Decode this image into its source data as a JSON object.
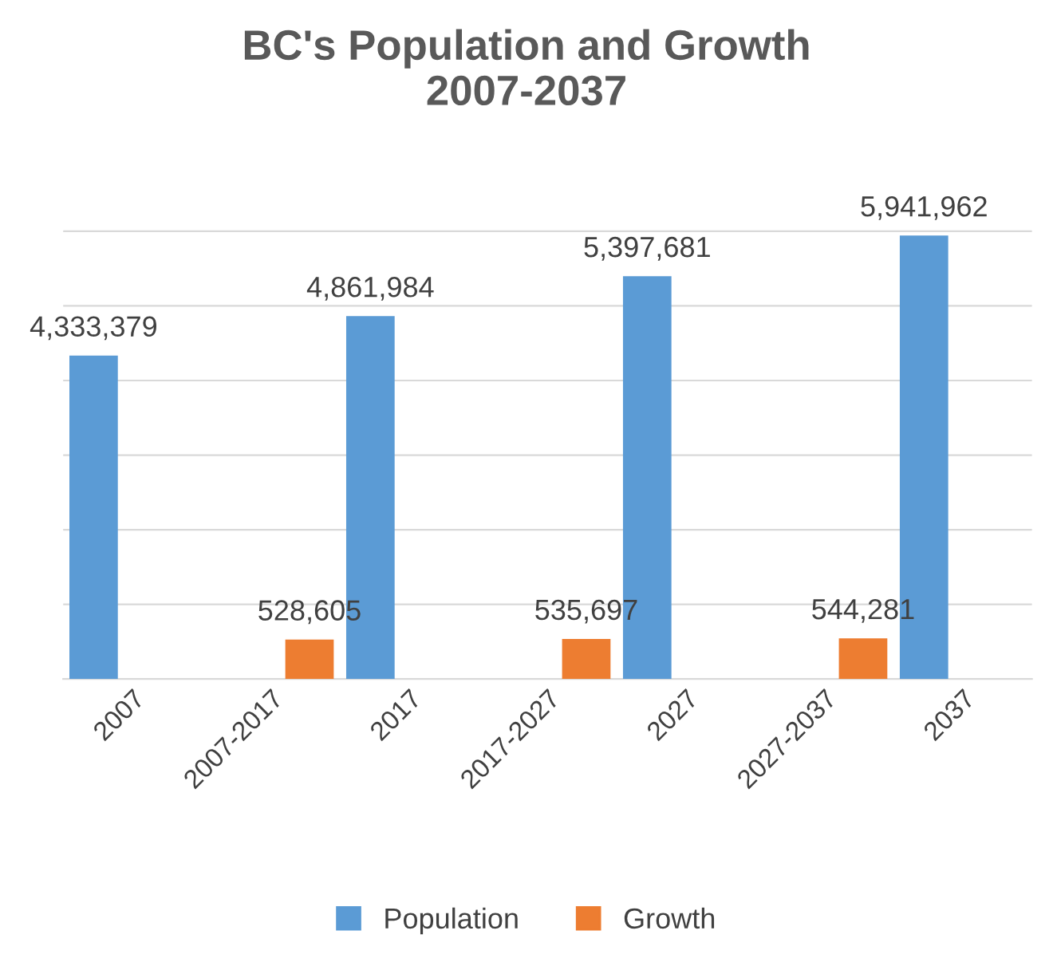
{
  "chart_data": {
    "type": "bar",
    "title": "BC's Population and Growth\n2007-2037",
    "categories": [
      "2007",
      "2007-2017",
      "2017",
      "2017-2027",
      "2027",
      "2027-2037",
      "2037"
    ],
    "series": [
      {
        "name": "Population",
        "color": "#5b9bd5",
        "values": [
          4333379,
          null,
          4861984,
          null,
          5397681,
          null,
          5941962
        ],
        "value_labels": [
          "4,333,379",
          null,
          "4,861,984",
          null,
          "5,397,681",
          null,
          "5,941,962"
        ]
      },
      {
        "name": "Growth",
        "color": "#ed7d31",
        "values": [
          null,
          528605,
          null,
          535697,
          null,
          544281,
          null
        ],
        "value_labels": [
          null,
          "528,605",
          null,
          "535,697",
          null,
          "544,281",
          null
        ]
      }
    ],
    "tick_labels": "x",
    "grid": "y",
    "legend": "bottom"
  }
}
